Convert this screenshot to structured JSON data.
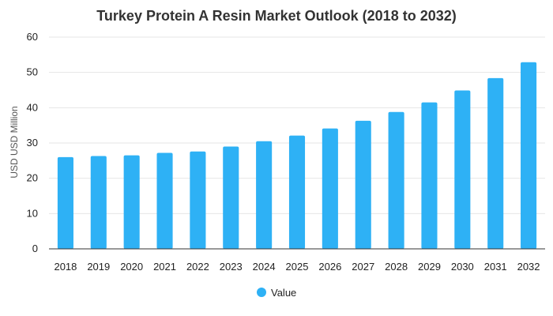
{
  "chart_data": {
    "type": "bar",
    "title": "Turkey Protein A Resin Market Outlook (2018 to 2032)",
    "xlabel": "",
    "ylabel": "USD USD Million",
    "categories": [
      "2018",
      "2019",
      "2020",
      "2021",
      "2022",
      "2023",
      "2024",
      "2025",
      "2026",
      "2027",
      "2028",
      "2029",
      "2030",
      "2031",
      "2032"
    ],
    "series": [
      {
        "name": "Value",
        "color": "#2eb1f5",
        "values": [
          26.0,
          26.3,
          26.5,
          27.2,
          27.6,
          29.0,
          30.5,
          32.1,
          34.1,
          36.3,
          38.8,
          41.5,
          44.9,
          48.4,
          52.9
        ]
      }
    ],
    "ylim": [
      0,
      60
    ],
    "yticks": [
      0,
      10,
      20,
      30,
      40,
      50,
      60
    ],
    "grid": true,
    "legend": "bottom-center"
  }
}
